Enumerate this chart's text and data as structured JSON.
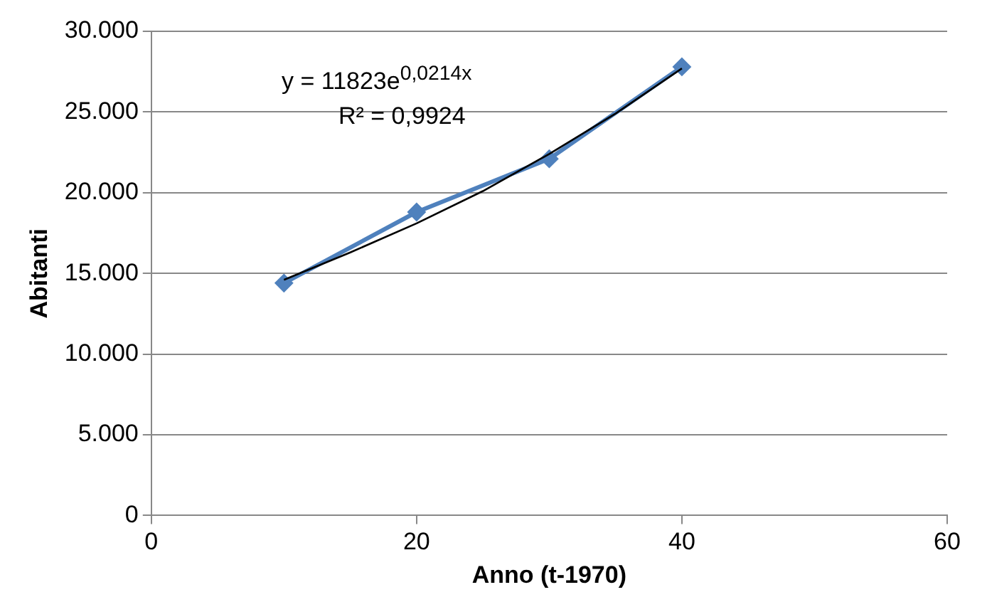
{
  "chart_data": {
    "type": "line",
    "xlabel": "Anno (t-1970)",
    "ylabel": "Abitanti",
    "xlim": [
      0,
      60
    ],
    "xticks": [
      0,
      20,
      40,
      60
    ],
    "ylim": [
      0,
      30000
    ],
    "yticks": [
      0,
      {
        "value": 5000,
        "label": "5.000"
      },
      {
        "value": 10000,
        "label": "10.000"
      },
      {
        "value": 15000,
        "label": "15.000"
      },
      {
        "value": 20000,
        "label": "20.000"
      },
      {
        "value": 25000,
        "label": "25.000"
      },
      {
        "value": 30000,
        "label": "30.000"
      }
    ],
    "grid": "y",
    "legend": false,
    "marker": "diamond",
    "line_style": "solid",
    "series": [
      {
        "color": "#4f81bd",
        "x": [
          10,
          20,
          30,
          40
        ],
        "values": [
          14400,
          18800,
          22100,
          27800
        ]
      },
      {
        "type": "line",
        "color": "#000000",
        "marker": "none",
        "x": [
          10,
          15,
          20,
          25,
          30,
          35,
          40
        ],
        "values": [
          14600,
          16300,
          18100,
          20100,
          22400,
          24900,
          27700
        ]
      }
    ],
    "annotations": [
      "y = 11823e$^{0,0214x}$",
      "R² = 0,9924"
    ]
  }
}
